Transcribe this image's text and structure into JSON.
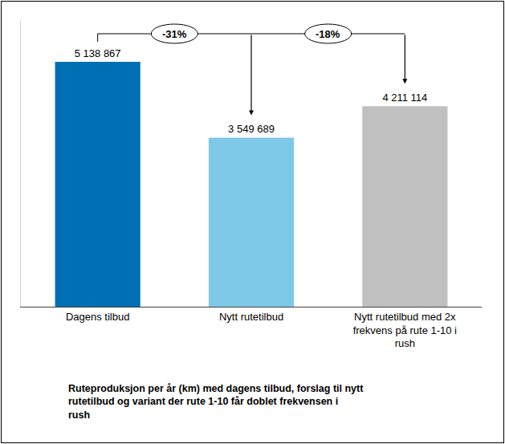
{
  "chart_data": {
    "type": "bar",
    "title": "Ruteproduksjon per år (km) med dagens tilbud, forslag til nytt rutetilbud og variant der rute 1-10 får doblet frekvensen i rush",
    "categories": [
      "Dagens tilbud",
      "Nytt rutetilbud",
      "Nytt rutetilbud med 2x frekvens på rute 1-10 i rush"
    ],
    "values": [
      5138867,
      3549689,
      4211114
    ],
    "value_labels": [
      "5 138 867",
      "3 549 689",
      "4 211 114"
    ],
    "colors": [
      "#0070b4",
      "#7ec8e8",
      "#c0c0c0"
    ],
    "ylim": [
      0,
      6000000
    ],
    "yticks": [],
    "tick_labels": "x",
    "grid": false,
    "data_labels": true,
    "annotations": [
      {
        "from": "Dagens tilbud",
        "to": "Nytt rutetilbud",
        "text": "-31%"
      },
      {
        "from": "Dagens tilbud",
        "to": "Nytt rutetilbud med 2x frekvens på rute 1-10 i rush",
        "text": "-18%"
      }
    ]
  }
}
